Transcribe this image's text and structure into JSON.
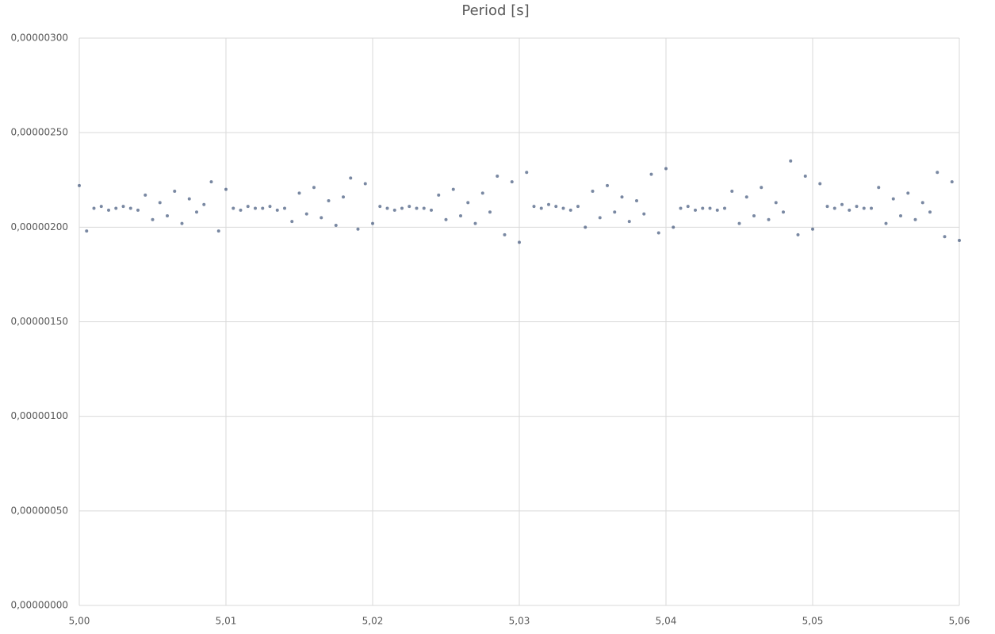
{
  "chart_data": {
    "type": "scatter",
    "title": "Period [s]",
    "series": [
      {
        "color": "#1f3864",
        "x": [
          5,
          5.0005,
          5.001,
          5.0015,
          5.002,
          5.0025,
          5.003,
          5.0035,
          5.004,
          5.0045,
          5.005,
          5.0055,
          5.006,
          5.0065,
          5.007,
          5.0075,
          5.008,
          5.0085,
          5.009,
          5.0095,
          5.01,
          5.0105,
          5.011,
          5.0115,
          5.012,
          5.0125,
          5.013,
          5.0135,
          5.014,
          5.0145,
          5.015,
          5.0155,
          5.016,
          5.0165,
          5.017,
          5.0175,
          5.018,
          5.0185,
          5.019,
          5.0195,
          5.02,
          5.0205,
          5.021,
          5.0215,
          5.022,
          5.0225,
          5.023,
          5.0235,
          5.024,
          5.0245,
          5.025,
          5.0255,
          5.026,
          5.0265,
          5.027,
          5.0275,
          5.028,
          5.0285,
          5.029,
          5.0295,
          5.03,
          5.0305,
          5.031,
          5.0315,
          5.032,
          5.0325,
          5.033,
          5.0335,
          5.034,
          5.0345,
          5.035,
          5.0355,
          5.036,
          5.0365,
          5.037,
          5.0375,
          5.038,
          5.0385,
          5.039,
          5.0395,
          5.04,
          5.0405,
          5.041,
          5.0415,
          5.042,
          5.0425,
          5.043,
          5.0435,
          5.044,
          5.0445,
          5.045,
          5.0455,
          5.046,
          5.0465,
          5.047,
          5.0475,
          5.048,
          5.0485,
          5.049,
          5.0495,
          5.05,
          5.0505,
          5.051,
          5.0515,
          5.052,
          5.0525,
          5.053,
          5.0535,
          5.054,
          5.0545,
          5.055,
          5.0555,
          5.056,
          5.0565,
          5.057,
          5.0575,
          5.058,
          5.0585,
          5.059,
          5.0595,
          5.06
        ],
        "values": [
          2.22e-06,
          1.98e-06,
          2.1e-06,
          2.11e-06,
          2.09e-06,
          2.1e-06,
          2.11e-06,
          2.1e-06,
          2.09e-06,
          2.17e-06,
          2.04e-06,
          2.13e-06,
          2.06e-06,
          2.19e-06,
          2.02e-06,
          2.15e-06,
          2.08e-06,
          2.12e-06,
          2.24e-06,
          1.98e-06,
          2.2e-06,
          2.1e-06,
          2.09e-06,
          2.11e-06,
          2.1e-06,
          2.1e-06,
          2.11e-06,
          2.09e-06,
          2.1e-06,
          2.03e-06,
          2.18e-06,
          2.07e-06,
          2.21e-06,
          2.05e-06,
          2.14e-06,
          2.01e-06,
          2.16e-06,
          2.26e-06,
          1.99e-06,
          2.23e-06,
          2.02e-06,
          2.11e-06,
          2.1e-06,
          2.09e-06,
          2.1e-06,
          2.11e-06,
          2.1e-06,
          2.1e-06,
          2.09e-06,
          2.17e-06,
          2.04e-06,
          2.2e-06,
          2.06e-06,
          2.13e-06,
          2.02e-06,
          2.18e-06,
          2.08e-06,
          2.27e-06,
          1.96e-06,
          2.24e-06,
          1.92e-06,
          2.29e-06,
          2.11e-06,
          2.1e-06,
          2.12e-06,
          2.11e-06,
          2.1e-06,
          2.09e-06,
          2.11e-06,
          2e-06,
          2.19e-06,
          2.05e-06,
          2.22e-06,
          2.08e-06,
          2.16e-06,
          2.03e-06,
          2.14e-06,
          2.07e-06,
          2.28e-06,
          1.97e-06,
          2.31e-06,
          2e-06,
          2.1e-06,
          2.11e-06,
          2.09e-06,
          2.1e-06,
          2.1e-06,
          2.09e-06,
          2.1e-06,
          2.19e-06,
          2.02e-06,
          2.16e-06,
          2.06e-06,
          2.21e-06,
          2.04e-06,
          2.13e-06,
          2.08e-06,
          2.35e-06,
          1.96e-06,
          2.27e-06,
          1.99e-06,
          2.23e-06,
          2.11e-06,
          2.1e-06,
          2.12e-06,
          2.09e-06,
          2.11e-06,
          2.1e-06,
          2.1e-06,
          2.21e-06,
          2.02e-06,
          2.15e-06,
          2.06e-06,
          2.18e-06,
          2.04e-06,
          2.13e-06,
          2.08e-06,
          2.29e-06,
          1.95e-06,
          2.24e-06,
          1.93e-06
        ]
      }
    ],
    "xlim": [
      5,
      5.06
    ],
    "xticks": [
      {
        "value": 5,
        "label": "5,00"
      },
      {
        "value": 5.01,
        "label": "5,01"
      },
      {
        "value": 5.02,
        "label": "5,02"
      },
      {
        "value": 5.03,
        "label": "5,03"
      },
      {
        "value": 5.04,
        "label": "5,04"
      },
      {
        "value": 5.05,
        "label": "5,05"
      },
      {
        "value": 5.06,
        "label": "5,06"
      }
    ],
    "ylim": [
      0,
      3e-06
    ],
    "yticks": [
      {
        "value": 0,
        "label": "0,00000000"
      },
      {
        "value": 5e-07,
        "label": "0,00000050"
      },
      {
        "value": 1e-06,
        "label": "0,00000100"
      },
      {
        "value": 1.5e-06,
        "label": "0,00000150"
      },
      {
        "value": 2e-06,
        "label": "0,00000200"
      },
      {
        "value": 2.5e-06,
        "label": "0,00000250"
      },
      {
        "value": 3e-06,
        "label": "0,00000300"
      }
    ],
    "grid": true
  }
}
